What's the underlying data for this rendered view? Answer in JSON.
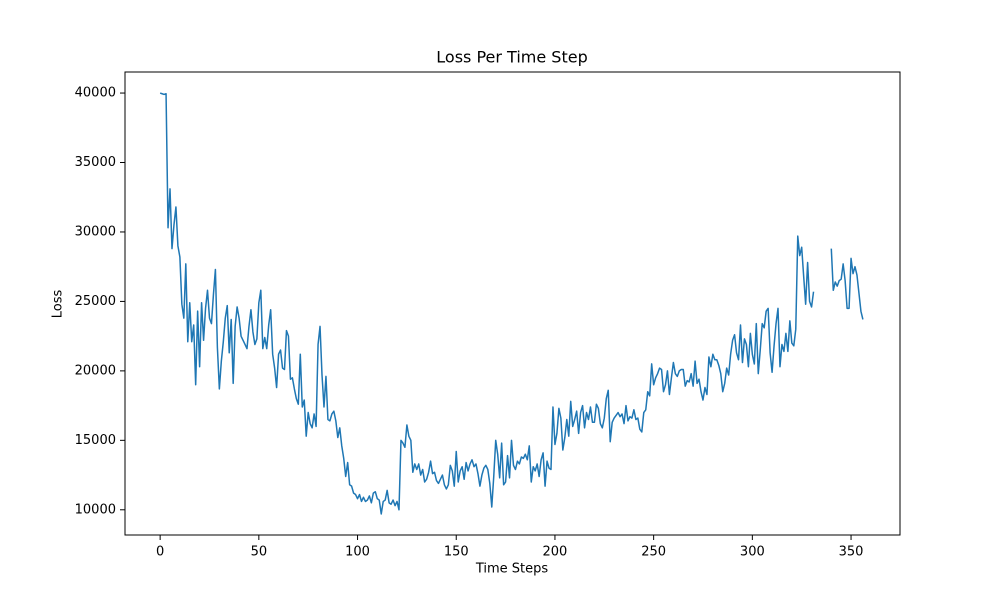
{
  "chart_data": {
    "type": "line",
    "title": "Loss Per Time Step",
    "x_label": "Time Steps",
    "y_label": "Loss",
    "xlim": [
      -17.8,
      374.8
    ],
    "ylim": [
      8185,
      41515
    ],
    "xticks": [
      0,
      50,
      100,
      150,
      200,
      250,
      300,
      350
    ],
    "yticks": [
      10000,
      15000,
      20000,
      25000,
      30000,
      35000,
      40000
    ],
    "grid": false,
    "x": [
      0,
      1,
      2,
      3,
      4,
      5,
      6,
      7,
      8,
      9,
      10,
      11,
      12,
      13,
      14,
      15,
      16,
      17,
      18,
      19,
      20,
      21,
      22,
      23,
      24,
      25,
      26,
      27,
      28,
      29,
      30,
      31,
      32,
      33,
      34,
      35,
      36,
      37,
      38,
      39,
      40,
      41,
      42,
      43,
      44,
      45,
      46,
      47,
      48,
      49,
      50,
      51,
      52,
      53,
      54,
      55,
      56,
      57,
      58,
      59,
      60,
      61,
      62,
      63,
      64,
      65,
      66,
      67,
      68,
      69,
      70,
      71,
      72,
      73,
      74,
      75,
      76,
      77,
      78,
      79,
      80,
      81,
      82,
      83,
      84,
      85,
      86,
      87,
      88,
      89,
      90,
      91,
      92,
      93,
      94,
      95,
      96,
      97,
      98,
      99,
      100,
      101,
      102,
      103,
      104,
      105,
      106,
      107,
      108,
      109,
      110,
      111,
      112,
      113,
      114,
      115,
      116,
      117,
      118,
      119,
      120,
      121,
      122,
      123,
      124,
      125,
      126,
      127,
      128,
      129,
      130,
      131,
      132,
      133,
      134,
      135,
      136,
      137,
      138,
      139,
      140,
      141,
      142,
      143,
      144,
      145,
      146,
      147,
      148,
      149,
      150,
      151,
      152,
      153,
      154,
      155,
      156,
      157,
      158,
      159,
      160,
      161,
      162,
      163,
      164,
      165,
      166,
      167,
      168,
      169,
      170,
      171,
      172,
      173,
      174,
      175,
      176,
      177,
      178,
      179,
      180,
      181,
      182,
      183,
      184,
      185,
      186,
      187,
      188,
      189,
      190,
      191,
      192,
      193,
      194,
      195,
      196,
      197,
      198,
      199,
      200,
      201,
      202,
      203,
      204,
      205,
      206,
      207,
      208,
      209,
      210,
      211,
      212,
      213,
      214,
      215,
      216,
      217,
      218,
      219,
      220,
      221,
      222,
      223,
      224,
      225,
      226,
      227,
      228,
      229,
      230,
      231,
      232,
      233,
      234,
      235,
      236,
      237,
      238,
      239,
      240,
      241,
      242,
      243,
      244,
      245,
      246,
      247,
      248,
      249,
      250,
      251,
      252,
      253,
      254,
      255,
      256,
      257,
      258,
      259,
      260,
      261,
      262,
      263,
      264,
      265,
      266,
      267,
      268,
      269,
      270,
      271,
      272,
      273,
      274,
      275,
      276,
      277,
      278,
      279,
      280,
      281,
      282,
      283,
      284,
      285,
      286,
      287,
      288,
      289,
      290,
      291,
      292,
      293,
      294,
      295,
      296,
      297,
      298,
      299,
      300,
      301,
      302,
      303,
      304,
      305,
      306,
      307,
      308,
      309,
      310,
      311,
      312,
      313,
      314,
      315,
      316,
      317,
      318,
      319,
      320,
      321,
      322,
      323,
      324,
      325,
      326,
      327,
      328,
      329,
      330,
      331,
      332,
      333,
      334,
      335,
      336,
      337,
      338,
      339,
      340,
      341,
      342,
      343,
      344,
      345,
      346,
      347,
      348,
      349,
      350,
      351,
      352,
      353,
      354,
      355,
      356
    ],
    "series": [
      {
        "name": "Loss",
        "color": "#1f77b4",
        "values": [
          40000,
          39950,
          39900,
          39950,
          30300,
          33100,
          28800,
          30500,
          31800,
          29000,
          28200,
          24800,
          23800,
          27700,
          22100,
          24900,
          22100,
          23300,
          19000,
          24300,
          20300,
          24900,
          22200,
          24500,
          25800,
          23800,
          23400,
          25500,
          27300,
          21700,
          18700,
          20700,
          22100,
          23800,
          24700,
          21300,
          23700,
          19100,
          23200,
          24600,
          23800,
          22500,
          22200,
          21900,
          21600,
          23200,
          24400,
          22800,
          21900,
          22300,
          24900,
          25800,
          21600,
          22400,
          21600,
          23300,
          24400,
          21200,
          20200,
          18800,
          21200,
          21500,
          20200,
          20100,
          22900,
          22500,
          19400,
          19500,
          18700,
          18000,
          17600,
          21200,
          17400,
          17900,
          15300,
          17000,
          16200,
          15900,
          16900,
          16000,
          21900,
          23200,
          19700,
          17400,
          19600,
          16500,
          16400,
          16900,
          17100,
          16400,
          15200,
          15900,
          14600,
          13700,
          12400,
          13400,
          11800,
          11700,
          11200,
          11100,
          10800,
          11100,
          10600,
          10900,
          10600,
          10700,
          11000,
          10500,
          11200,
          11300,
          10800,
          10700,
          9700,
          10600,
          10700,
          11400,
          10500,
          10400,
          10700,
          10300,
          10600,
          10000,
          15000,
          14800,
          14500,
          16100,
          15300,
          15000,
          12700,
          13300,
          12900,
          13300,
          12500,
          12900,
          12000,
          12200,
          12700,
          13500,
          12600,
          12700,
          12100,
          11900,
          12200,
          12500,
          11800,
          11500,
          11800,
          13200,
          12800,
          11700,
          14200,
          12000,
          12800,
          13100,
          12200,
          13400,
          12800,
          13300,
          13600,
          13100,
          13300,
          12600,
          11700,
          12500,
          13000,
          13200,
          12900,
          11900,
          10200,
          12400,
          15000,
          14000,
          12300,
          14800,
          11800,
          12000,
          13900,
          12300,
          15000,
          13200,
          12900,
          13500,
          13300,
          13800,
          13700,
          14000,
          13600,
          14600,
          12000,
          13100,
          12800,
          13300,
          12400,
          13600,
          14100,
          11700,
          13500,
          13000,
          12900,
          17400,
          14700,
          15500,
          17300,
          16600,
          14300,
          15200,
          16500,
          15300,
          17800,
          16000,
          16500,
          17100,
          15500,
          17000,
          17500,
          15900,
          17000,
          16500,
          17400,
          16300,
          16300,
          17600,
          17300,
          16200,
          15900,
          16600,
          18000,
          18600,
          14900,
          16300,
          16600,
          16800,
          17000,
          16700,
          16900,
          16200,
          17500,
          16400,
          16700,
          16600,
          17200,
          16500,
          16600,
          15800,
          15600,
          17000,
          17200,
          18500,
          18200,
          20500,
          19000,
          19500,
          19800,
          20200,
          20100,
          18500,
          19000,
          20000,
          18300,
          19500,
          20600,
          19800,
          19600,
          20000,
          20100,
          20100,
          18900,
          19300,
          19200,
          19800,
          18900,
          20700,
          19100,
          19400,
          18500,
          17900,
          18800,
          18300,
          21000,
          20300,
          21200,
          20800,
          20800,
          20400,
          19800,
          18500,
          19100,
          20200,
          19700,
          21200,
          22200,
          22600,
          21300,
          20800,
          23300,
          20600,
          22300,
          21900,
          20300,
          22700,
          21200,
          20500,
          23400,
          19800,
          21500,
          23400,
          23100,
          24300,
          24500,
          21300,
          19900,
          21800,
          23400,
          24500,
          20300,
          21900,
          21400,
          22700,
          21400,
          23600,
          22000,
          21800,
          23000,
          29700,
          28300,
          28900,
          26800,
          24800,
          27800,
          25000,
          24600,
          25700,
          null,
          null,
          null,
          null,
          null,
          null,
          null,
          null,
          28800,
          25800,
          26400,
          26100,
          26500,
          26600,
          27700,
          26500,
          24500,
          24500,
          28100,
          27000,
          27500,
          26900,
          25600,
          24300,
          23700
        ]
      }
    ]
  }
}
